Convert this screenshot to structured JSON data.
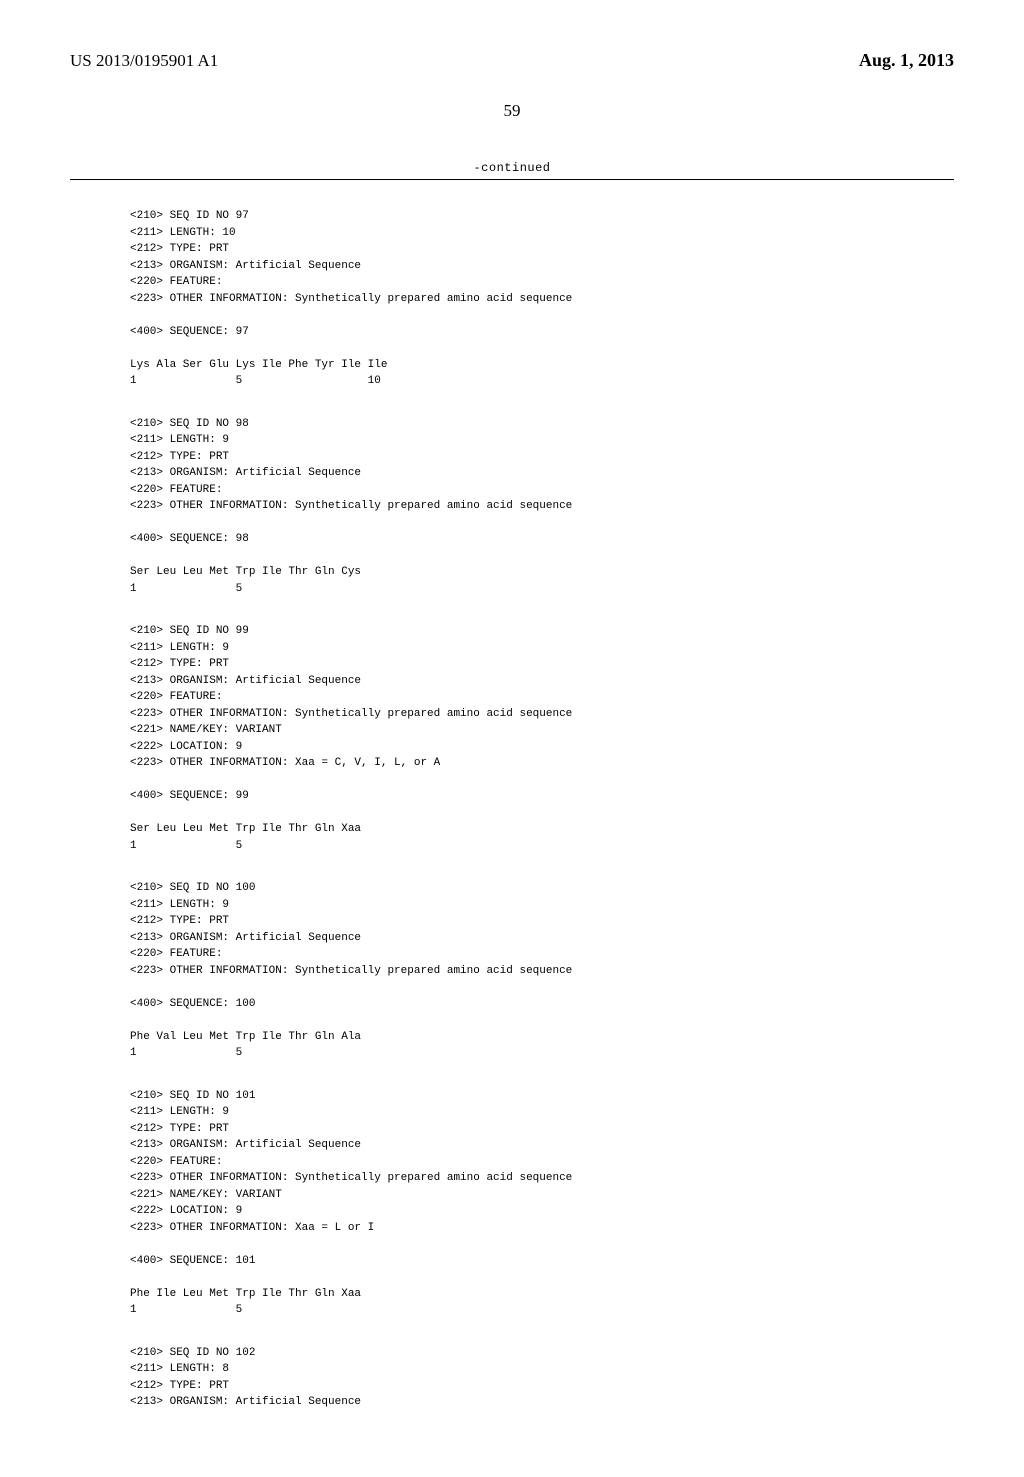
{
  "header": {
    "publication_id": "US 2013/0195901 A1",
    "publication_date": "Aug. 1, 2013"
  },
  "page_number": "59",
  "continued_label": "-continued",
  "sequences": [
    {
      "lines": [
        "<210> SEQ ID NO 97",
        "<211> LENGTH: 10",
        "<212> TYPE: PRT",
        "<213> ORGANISM: Artificial Sequence",
        "<220> FEATURE:",
        "<223> OTHER INFORMATION: Synthetically prepared amino acid sequence",
        "",
        "<400> SEQUENCE: 97",
        "",
        "Lys Ala Ser Glu Lys Ile Phe Tyr Ile Ile",
        "1               5                   10"
      ]
    },
    {
      "lines": [
        "<210> SEQ ID NO 98",
        "<211> LENGTH: 9",
        "<212> TYPE: PRT",
        "<213> ORGANISM: Artificial Sequence",
        "<220> FEATURE:",
        "<223> OTHER INFORMATION: Synthetically prepared amino acid sequence",
        "",
        "<400> SEQUENCE: 98",
        "",
        "Ser Leu Leu Met Trp Ile Thr Gln Cys",
        "1               5"
      ]
    },
    {
      "lines": [
        "<210> SEQ ID NO 99",
        "<211> LENGTH: 9",
        "<212> TYPE: PRT",
        "<213> ORGANISM: Artificial Sequence",
        "<220> FEATURE:",
        "<223> OTHER INFORMATION: Synthetically prepared amino acid sequence",
        "<221> NAME/KEY: VARIANT",
        "<222> LOCATION: 9",
        "<223> OTHER INFORMATION: Xaa = C, V, I, L, or A",
        "",
        "<400> SEQUENCE: 99",
        "",
        "Ser Leu Leu Met Trp Ile Thr Gln Xaa",
        "1               5"
      ]
    },
    {
      "lines": [
        "<210> SEQ ID NO 100",
        "<211> LENGTH: 9",
        "<212> TYPE: PRT",
        "<213> ORGANISM: Artificial Sequence",
        "<220> FEATURE:",
        "<223> OTHER INFORMATION: Synthetically prepared amino acid sequence",
        "",
        "<400> SEQUENCE: 100",
        "",
        "Phe Val Leu Met Trp Ile Thr Gln Ala",
        "1               5"
      ]
    },
    {
      "lines": [
        "<210> SEQ ID NO 101",
        "<211> LENGTH: 9",
        "<212> TYPE: PRT",
        "<213> ORGANISM: Artificial Sequence",
        "<220> FEATURE:",
        "<223> OTHER INFORMATION: Synthetically prepared amino acid sequence",
        "<221> NAME/KEY: VARIANT",
        "<222> LOCATION: 9",
        "<223> OTHER INFORMATION: Xaa = L or I",
        "",
        "<400> SEQUENCE: 101",
        "",
        "Phe Ile Leu Met Trp Ile Thr Gln Xaa",
        "1               5"
      ]
    },
    {
      "lines": [
        "<210> SEQ ID NO 102",
        "<211> LENGTH: 8",
        "<212> TYPE: PRT",
        "<213> ORGANISM: Artificial Sequence"
      ]
    }
  ]
}
